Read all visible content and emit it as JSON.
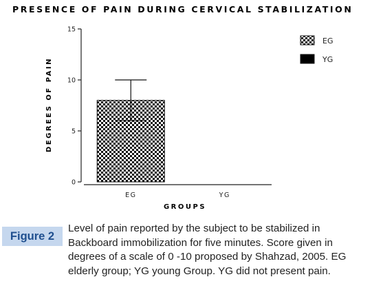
{
  "chart_data": {
    "type": "bar",
    "title": "PRESENCE OF PAIN DURING CERVICAL STABILIZATION",
    "xlabel": "GROUPS",
    "ylabel": "DEGREES OF PAIN",
    "categories": [
      "EG",
      "YG"
    ],
    "values": [
      8,
      0
    ],
    "error_upper": [
      10,
      null
    ],
    "error_lower": [
      6,
      null
    ],
    "ylim": [
      0,
      15
    ],
    "yticks": [
      0,
      5,
      10,
      15
    ],
    "legend": [
      "EG",
      "YG"
    ],
    "legend_position": "top-right",
    "grid": false,
    "colors": {
      "EG": "checkerboard black/white",
      "YG": "#000000"
    }
  },
  "caption": {
    "figure_label": "Figure 2",
    "text": "Level of pain reported by the subject to be stabilized in Backboard immobilization for five minutes. Score given in degrees of a scale of 0 -10 proposed by Shahzad, 2005. EG elderly group; YG young Group. YG did not present pain."
  }
}
